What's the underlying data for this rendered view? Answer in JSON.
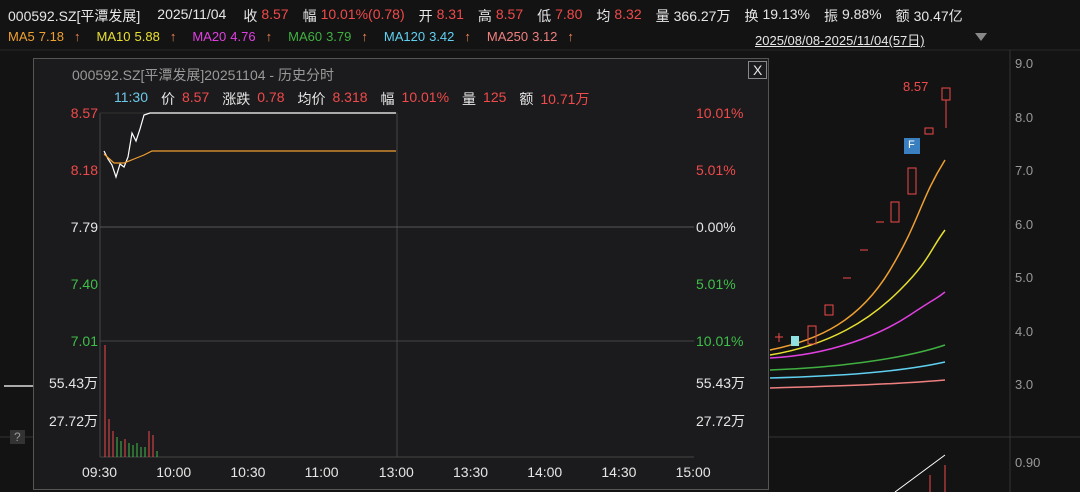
{
  "header": {
    "code": "000592.SZ[平潭发展]",
    "date": "2025/11/04",
    "fields": [
      {
        "label": "收",
        "value": "8.57"
      },
      {
        "label": "幅",
        "value": "10.01%(0.78)"
      },
      {
        "label": "开",
        "value": "8.31"
      },
      {
        "label": "高",
        "value": "8.57"
      },
      {
        "label": "低",
        "value": "7.80"
      },
      {
        "label": "均",
        "value": "8.32"
      },
      {
        "label": "量",
        "value": "366.27万"
      },
      {
        "label": "换",
        "value": "19.13%"
      },
      {
        "label": "振",
        "value": "9.88%"
      },
      {
        "label": "额",
        "value": "30.47亿"
      }
    ]
  },
  "ma": [
    {
      "name": "MA5",
      "value": "7.18",
      "trend": "↑"
    },
    {
      "name": "MA10",
      "value": "5.88",
      "trend": "↑"
    },
    {
      "name": "MA20",
      "value": "4.76",
      "trend": "↑"
    },
    {
      "name": "MA60",
      "value": "3.79",
      "trend": "↑"
    },
    {
      "name": "MA120",
      "value": "3.42",
      "trend": "↑"
    },
    {
      "name": "MA250",
      "value": "3.12",
      "trend": "↑"
    }
  ],
  "range": "2025/08/08-2025/11/04(57日)",
  "price_axis": [
    "9.0",
    "8.0",
    "7.0",
    "6.0",
    "5.0",
    "4.0",
    "3.0"
  ],
  "indicator_axis": "0.90",
  "high_label": "8.57",
  "marker": "F",
  "help": "?",
  "popup": {
    "title": "000592.SZ[平潭发展]20251104 - 历史分时",
    "close": "X",
    "info": {
      "time": "11:30",
      "items": [
        {
          "label": "价",
          "value": "8.57"
        },
        {
          "label": "涨跌",
          "value": "0.78"
        },
        {
          "label": "均价",
          "value": "8.318"
        },
        {
          "label": "幅",
          "value": "10.01%"
        },
        {
          "label": "量",
          "value": "125"
        },
        {
          "label": "额",
          "value": "10.71万"
        }
      ]
    },
    "left_axis": [
      "8.57",
      "8.18",
      "7.79",
      "7.40",
      "7.01"
    ],
    "right_axis": [
      "10.01%",
      "5.01%",
      "0.00%",
      "5.01%",
      "10.01%"
    ],
    "volume_axis": [
      "55.43万",
      "27.72万"
    ],
    "time_axis": [
      "09:30",
      "10:00",
      "10:30",
      "11:00",
      "13:00",
      "13:30",
      "14:00",
      "14:30",
      "15:00"
    ]
  }
}
